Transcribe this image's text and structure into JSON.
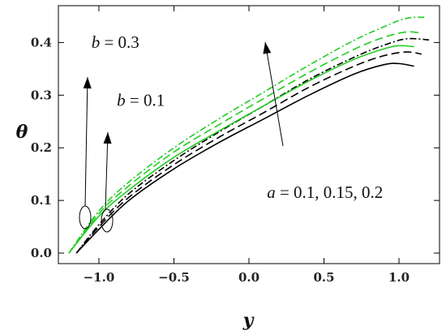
{
  "chart_data": {
    "type": "line",
    "title": "",
    "xlabel": "y",
    "ylabel": "θ",
    "xlim": [
      -1.27,
      1.27
    ],
    "ylim": [
      -0.02,
      0.47
    ],
    "xticks": [
      -1.0,
      -0.5,
      0.0,
      0.5,
      1.0
    ],
    "xtick_labels": [
      "−1.0",
      "−0.5",
      "0.0",
      "0.5",
      "1.0"
    ],
    "yticks": [
      0.0,
      0.1,
      0.2,
      0.3,
      0.4
    ],
    "ytick_labels": [
      "0.0",
      "0.1",
      "0.2",
      "0.3",
      "0.4"
    ],
    "grid": false,
    "series": [
      {
        "color": "#000000",
        "dash": "solid",
        "x": [
          -1.15,
          -1.0,
          -0.8,
          -0.5,
          -0.2,
          0.1,
          0.4,
          0.7,
          0.9,
          1.0,
          1.1
        ],
        "y": [
          0.0,
          0.045,
          0.1,
          0.16,
          0.21,
          0.255,
          0.3,
          0.34,
          0.358,
          0.36,
          0.355
        ]
      },
      {
        "color": "#000000",
        "dash": "dashed",
        "x": [
          -1.15,
          -1.0,
          -0.8,
          -0.5,
          -0.2,
          0.1,
          0.4,
          0.7,
          0.9,
          1.05,
          1.15
        ],
        "y": [
          0.0,
          0.05,
          0.106,
          0.168,
          0.22,
          0.267,
          0.315,
          0.355,
          0.375,
          0.382,
          0.378
        ]
      },
      {
        "color": "#000000",
        "dash": "dashdot",
        "x": [
          -1.15,
          -1.0,
          -0.8,
          -0.5,
          -0.2,
          0.1,
          0.4,
          0.7,
          0.9,
          1.05,
          1.2
        ],
        "y": [
          0.0,
          0.054,
          0.113,
          0.176,
          0.23,
          0.28,
          0.33,
          0.372,
          0.395,
          0.407,
          0.405
        ]
      },
      {
        "color": "#22cc22",
        "dash": "solid",
        "x": [
          -1.2,
          -1.0,
          -0.8,
          -0.5,
          -0.2,
          0.1,
          0.4,
          0.7,
          0.9,
          1.0,
          1.1
        ],
        "y": [
          0.0,
          0.07,
          0.12,
          0.182,
          0.232,
          0.28,
          0.327,
          0.368,
          0.388,
          0.394,
          0.392
        ]
      },
      {
        "color": "#22cc22",
        "dash": "dashed",
        "x": [
          -1.2,
          -1.0,
          -0.8,
          -0.5,
          -0.2,
          0.1,
          0.4,
          0.7,
          0.9,
          1.05,
          1.15
        ],
        "y": [
          0.0,
          0.075,
          0.128,
          0.192,
          0.244,
          0.294,
          0.343,
          0.387,
          0.41,
          0.42,
          0.418
        ]
      },
      {
        "color": "#22cc22",
        "dash": "dashdot",
        "x": [
          -1.2,
          -1.0,
          -0.8,
          -0.5,
          -0.2,
          0.1,
          0.4,
          0.7,
          0.9,
          1.05,
          1.18
        ],
        "y": [
          0.0,
          0.08,
          0.135,
          0.2,
          0.255,
          0.306,
          0.357,
          0.404,
          0.43,
          0.446,
          0.448
        ]
      }
    ],
    "annotations": [
      {
        "var": "b",
        "text": " = 0.3",
        "at": [
          -1.05,
          0.39
        ]
      },
      {
        "var": "b",
        "text": " = 0.1",
        "at": [
          -0.88,
          0.28
        ]
      },
      {
        "var": "a",
        "text": " = 0.1, 0.15, 0.2",
        "at": [
          0.12,
          0.105
        ]
      }
    ]
  }
}
